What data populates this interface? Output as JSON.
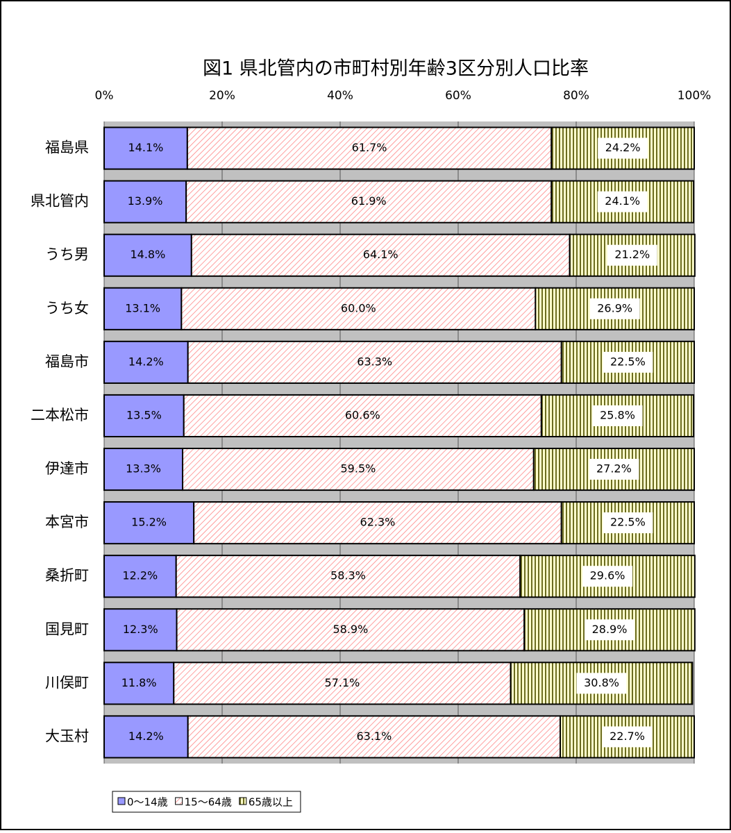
{
  "chart_data": {
    "type": "stacked-barh",
    "title": "図1 県北管内の市町村別年齢3区分別人口比率",
    "categories": [
      "福島県",
      "県北管内",
      "うち男",
      "うち女",
      "福島市",
      "二本松市",
      "伊達市",
      "本宮市",
      "桑折町",
      "国見町",
      "川俣町",
      "大玉村"
    ],
    "series": [
      {
        "name": "0～14歳",
        "color": "#9999ff",
        "values": [
          14.1,
          13.9,
          14.8,
          13.1,
          14.2,
          13.5,
          13.3,
          15.2,
          12.2,
          12.3,
          11.8,
          14.2
        ],
        "value_labels": [
          "14.1%",
          "13.9%",
          "14.8%",
          "13.1%",
          "14.2%",
          "13.5%",
          "13.3%",
          "15.2%",
          "12.2%",
          "12.3%",
          "11.8%",
          "14.2%"
        ]
      },
      {
        "name": "15～64歳",
        "color": "#ff8080",
        "values": [
          61.7,
          61.9,
          64.1,
          60.0,
          63.3,
          60.6,
          59.5,
          62.3,
          58.3,
          58.9,
          57.1,
          63.1
        ],
        "value_labels": [
          "61.7%",
          "61.9%",
          "64.1%",
          "60.0%",
          "63.3%",
          "60.6%",
          "59.5%",
          "62.3%",
          "58.3%",
          "58.9%",
          "57.1%",
          "63.1%"
        ]
      },
      {
        "name": "65歳以上",
        "color": "#6b6b20",
        "values": [
          24.2,
          24.1,
          21.2,
          26.9,
          22.5,
          25.8,
          27.2,
          22.5,
          29.6,
          28.9,
          30.8,
          22.7
        ],
        "value_labels": [
          "24.2%",
          "24.1%",
          "21.2%",
          "26.9%",
          "22.5%",
          "25.8%",
          "27.2%",
          "22.5%",
          "29.6%",
          "28.9%",
          "30.8%",
          "22.7%"
        ]
      }
    ],
    "xlim": [
      0,
      100
    ],
    "xticks": [
      {
        "value": 0,
        "label": "0%"
      },
      {
        "value": 20,
        "label": "20%"
      },
      {
        "value": 40,
        "label": "40%"
      },
      {
        "value": 60,
        "label": "60%"
      },
      {
        "value": 80,
        "label": "80%"
      },
      {
        "value": 100,
        "label": "100%"
      }
    ],
    "grid": true,
    "legend": "bottom-left"
  }
}
